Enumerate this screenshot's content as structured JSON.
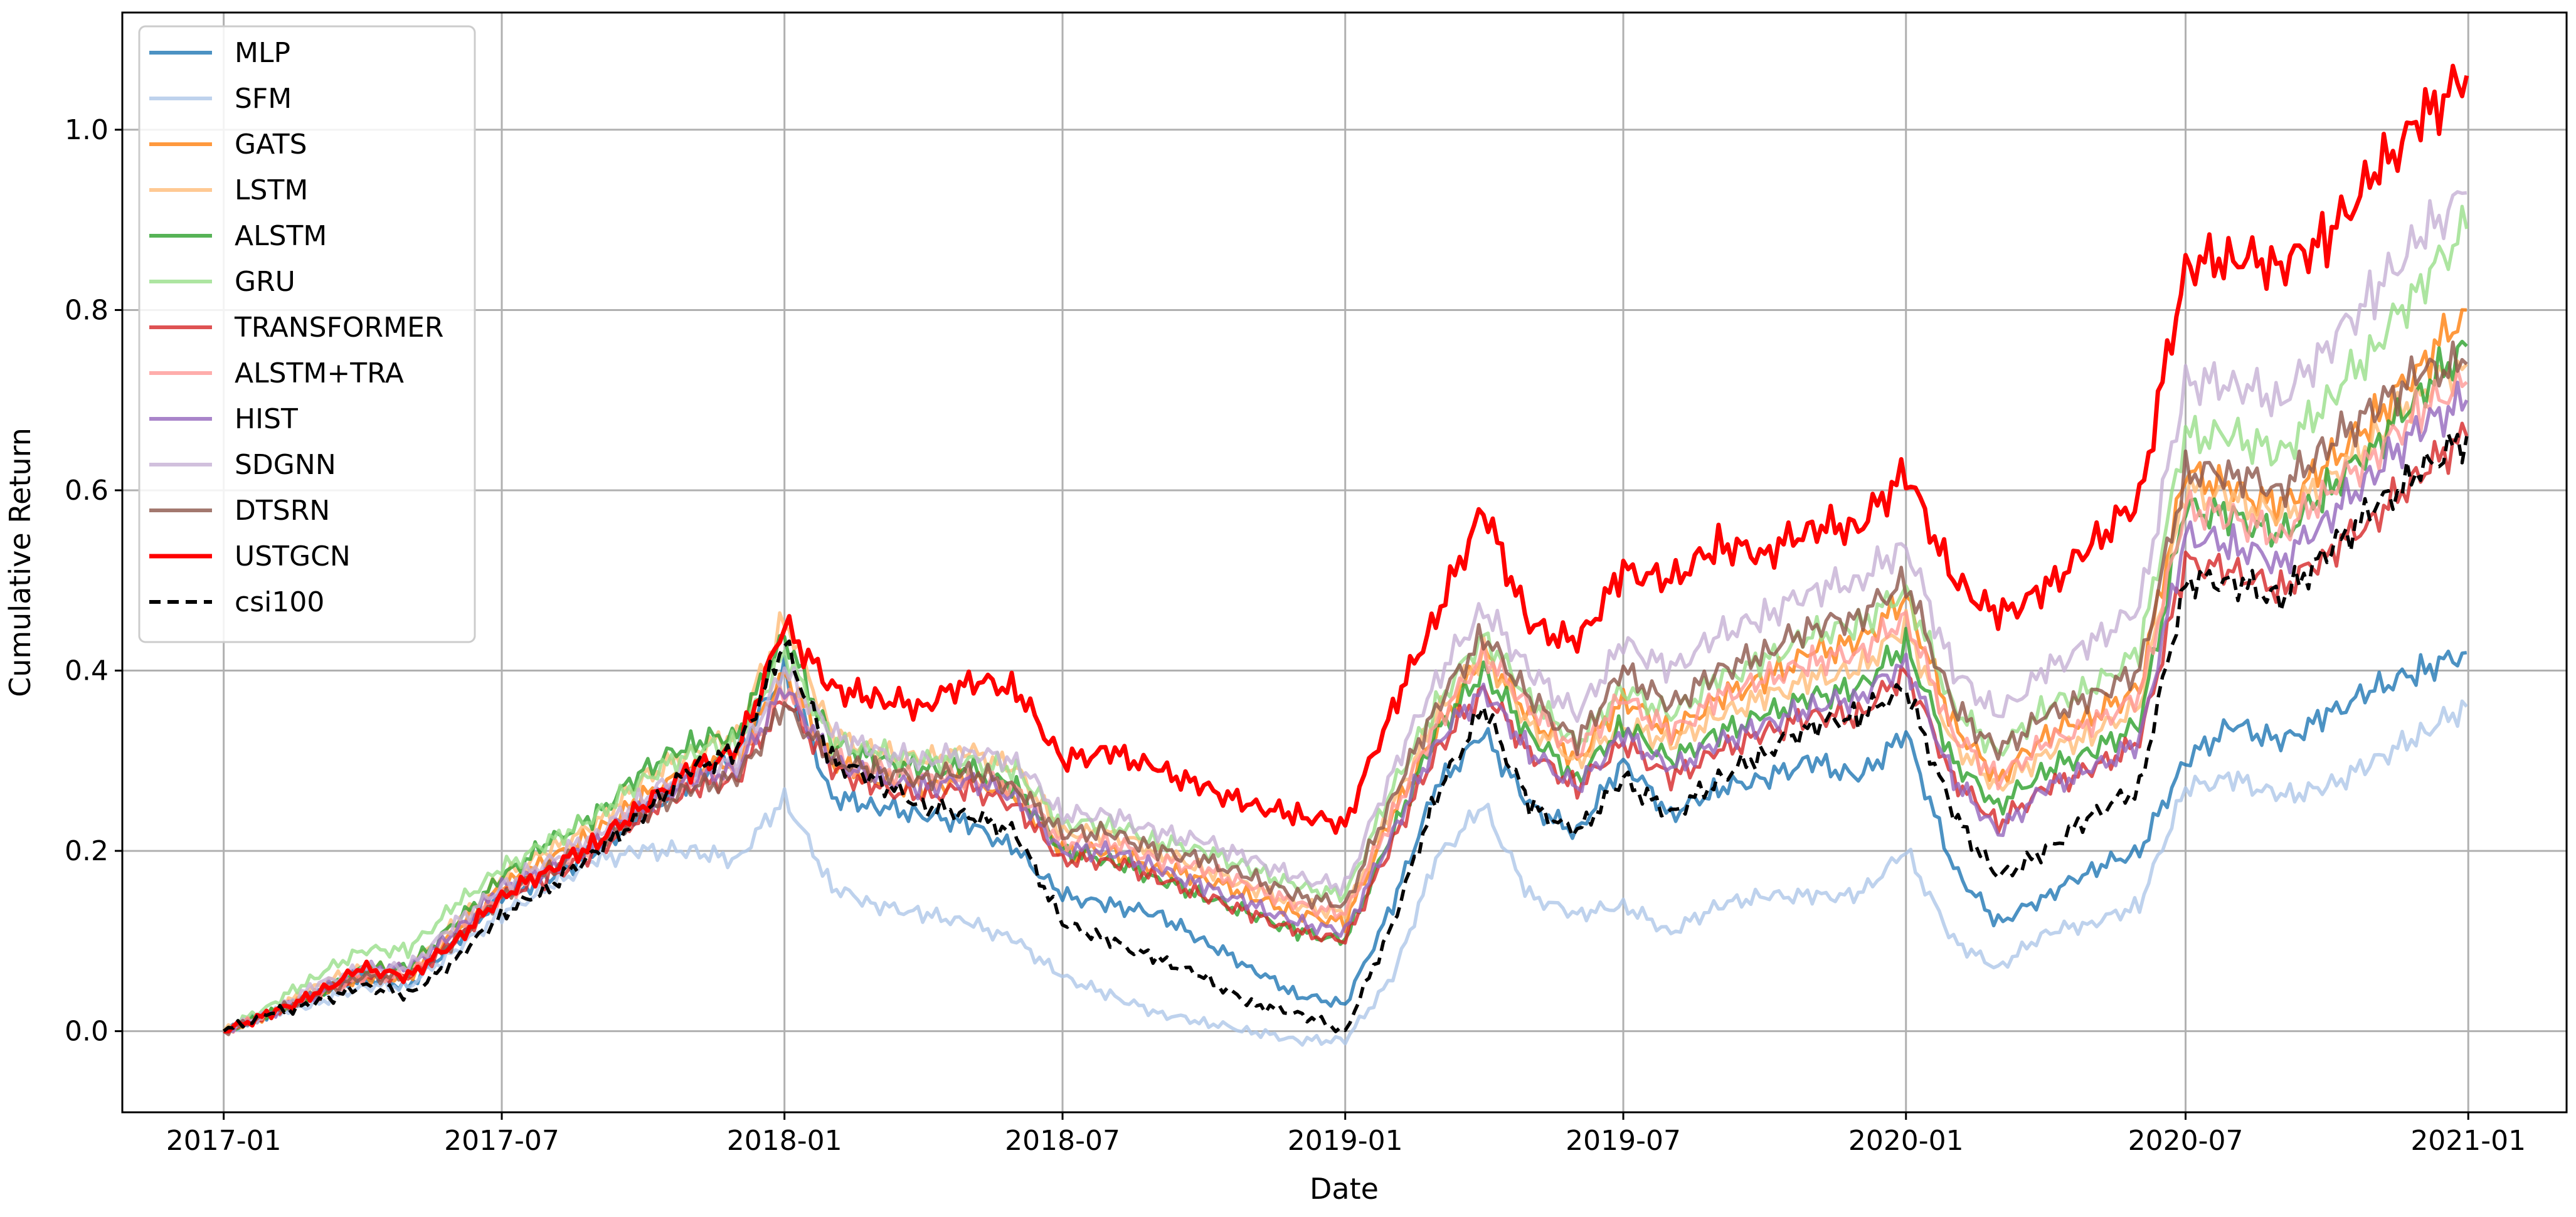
{
  "chart_data": {
    "type": "line",
    "title": "",
    "xlabel": "Date",
    "ylabel": "Cumulative Return",
    "xlim": [
      "2016-10-27",
      "2021-03-06"
    ],
    "ylim": [
      -0.09,
      1.13
    ],
    "x_tick_labels": [
      "2017-01",
      "2017-07",
      "2018-01",
      "2018-07",
      "2019-01",
      "2019-07",
      "2020-01",
      "2020-07",
      "2021-01"
    ],
    "y_tick_labels": [
      "0.0",
      "0.2",
      "0.4",
      "0.6",
      "0.8",
      "1.0"
    ],
    "y_ticks": [
      0.0,
      0.2,
      0.4,
      0.6,
      0.8,
      1.0
    ],
    "grid": true,
    "legend_position": "upper-left",
    "x": [
      "2017-01-01",
      "2017-02-01",
      "2017-03-01",
      "2017-04-01",
      "2017-05-01",
      "2017-06-01",
      "2017-07-01",
      "2017-08-01",
      "2017-09-01",
      "2017-10-01",
      "2017-11-01",
      "2017-12-01",
      "2018-01-01",
      "2018-02-01",
      "2018-03-01",
      "2018-04-01",
      "2018-05-01",
      "2018-06-01",
      "2018-07-01",
      "2018-08-01",
      "2018-09-01",
      "2018-10-01",
      "2018-11-01",
      "2018-12-01",
      "2019-01-01",
      "2019-02-01",
      "2019-03-01",
      "2019-04-01",
      "2019-05-01",
      "2019-06-01",
      "2019-07-01",
      "2019-08-01",
      "2019-09-01",
      "2019-10-01",
      "2019-11-01",
      "2019-12-01",
      "2020-01-01",
      "2020-02-01",
      "2020-03-01",
      "2020-04-01",
      "2020-05-01",
      "2020-06-01",
      "2020-07-01",
      "2020-08-01",
      "2020-09-01",
      "2020-10-01",
      "2020-11-01",
      "2020-12-01",
      "2020-12-31"
    ],
    "series": [
      {
        "name": "MLP",
        "color": "#1f77b4",
        "values": [
          0.0,
          0.02,
          0.04,
          0.06,
          0.05,
          0.1,
          0.15,
          0.17,
          0.2,
          0.24,
          0.28,
          0.31,
          0.4,
          0.26,
          0.25,
          0.24,
          0.23,
          0.2,
          0.15,
          0.14,
          0.13,
          0.1,
          0.07,
          0.04,
          0.03,
          0.14,
          0.27,
          0.33,
          0.25,
          0.22,
          0.3,
          0.24,
          0.27,
          0.28,
          0.3,
          0.28,
          0.33,
          0.18,
          0.12,
          0.15,
          0.18,
          0.2,
          0.3,
          0.34,
          0.32,
          0.35,
          0.38,
          0.4,
          0.42
        ]
      },
      {
        "name": "SFM",
        "color": "#aec7e8",
        "values": [
          0.0,
          0.02,
          0.03,
          0.05,
          0.05,
          0.09,
          0.13,
          0.16,
          0.19,
          0.2,
          0.2,
          0.19,
          0.26,
          0.16,
          0.14,
          0.13,
          0.12,
          0.1,
          0.06,
          0.04,
          0.02,
          0.01,
          0.0,
          -0.01,
          -0.01,
          0.06,
          0.19,
          0.25,
          0.15,
          0.13,
          0.14,
          0.11,
          0.14,
          0.15,
          0.15,
          0.15,
          0.2,
          0.1,
          0.07,
          0.11,
          0.12,
          0.14,
          0.27,
          0.28,
          0.26,
          0.27,
          0.3,
          0.33,
          0.36
        ]
      },
      {
        "name": "GATS",
        "color": "#ff7f0e",
        "values": [
          0.0,
          0.02,
          0.04,
          0.06,
          0.06,
          0.11,
          0.16,
          0.19,
          0.22,
          0.26,
          0.29,
          0.3,
          0.4,
          0.3,
          0.28,
          0.27,
          0.28,
          0.26,
          0.2,
          0.2,
          0.18,
          0.17,
          0.15,
          0.13,
          0.12,
          0.24,
          0.33,
          0.42,
          0.35,
          0.3,
          0.37,
          0.33,
          0.37,
          0.39,
          0.42,
          0.43,
          0.48,
          0.34,
          0.28,
          0.33,
          0.35,
          0.38,
          0.62,
          0.6,
          0.58,
          0.63,
          0.68,
          0.74,
          0.8
        ]
      },
      {
        "name": "LSTM",
        "color": "#ffbb78",
        "values": [
          0.0,
          0.02,
          0.05,
          0.07,
          0.07,
          0.12,
          0.17,
          0.2,
          0.23,
          0.28,
          0.31,
          0.33,
          0.46,
          0.33,
          0.31,
          0.3,
          0.31,
          0.29,
          0.22,
          0.22,
          0.2,
          0.18,
          0.16,
          0.14,
          0.13,
          0.25,
          0.35,
          0.42,
          0.34,
          0.3,
          0.34,
          0.32,
          0.35,
          0.37,
          0.39,
          0.4,
          0.45,
          0.32,
          0.27,
          0.31,
          0.33,
          0.36,
          0.6,
          0.59,
          0.57,
          0.61,
          0.66,
          0.71,
          0.74
        ]
      },
      {
        "name": "ALSTM",
        "color": "#2ca02c",
        "values": [
          0.0,
          0.02,
          0.04,
          0.07,
          0.07,
          0.12,
          0.17,
          0.21,
          0.24,
          0.29,
          0.32,
          0.33,
          0.44,
          0.32,
          0.3,
          0.29,
          0.29,
          0.27,
          0.2,
          0.19,
          0.17,
          0.15,
          0.13,
          0.11,
          0.1,
          0.22,
          0.33,
          0.4,
          0.33,
          0.28,
          0.34,
          0.3,
          0.33,
          0.35,
          0.37,
          0.38,
          0.43,
          0.3,
          0.25,
          0.29,
          0.31,
          0.34,
          0.58,
          0.57,
          0.55,
          0.6,
          0.65,
          0.71,
          0.76
        ]
      },
      {
        "name": "GRU",
        "color": "#98df8a",
        "values": [
          0.0,
          0.03,
          0.06,
          0.09,
          0.09,
          0.14,
          0.18,
          0.21,
          0.24,
          0.28,
          0.31,
          0.32,
          0.42,
          0.32,
          0.31,
          0.3,
          0.3,
          0.29,
          0.23,
          0.23,
          0.21,
          0.2,
          0.18,
          0.16,
          0.15,
          0.27,
          0.36,
          0.44,
          0.37,
          0.32,
          0.38,
          0.35,
          0.39,
          0.41,
          0.44,
          0.45,
          0.49,
          0.36,
          0.31,
          0.36,
          0.38,
          0.42,
          0.66,
          0.66,
          0.64,
          0.7,
          0.76,
          0.83,
          0.89
        ]
      },
      {
        "name": "TRANSFORMER",
        "color": "#d62728",
        "values": [
          0.0,
          0.02,
          0.04,
          0.06,
          0.06,
          0.1,
          0.15,
          0.17,
          0.2,
          0.24,
          0.27,
          0.28,
          0.37,
          0.29,
          0.27,
          0.26,
          0.27,
          0.25,
          0.19,
          0.19,
          0.17,
          0.15,
          0.13,
          0.11,
          0.1,
          0.21,
          0.31,
          0.38,
          0.31,
          0.27,
          0.32,
          0.28,
          0.31,
          0.33,
          0.35,
          0.35,
          0.4,
          0.28,
          0.23,
          0.27,
          0.29,
          0.32,
          0.52,
          0.51,
          0.49,
          0.53,
          0.57,
          0.62,
          0.66
        ]
      },
      {
        "name": "ALSTM+TRA",
        "color": "#ff9896",
        "values": [
          0.0,
          0.02,
          0.04,
          0.06,
          0.06,
          0.11,
          0.15,
          0.18,
          0.21,
          0.25,
          0.28,
          0.29,
          0.38,
          0.3,
          0.29,
          0.28,
          0.28,
          0.27,
          0.21,
          0.21,
          0.19,
          0.18,
          0.16,
          0.14,
          0.13,
          0.24,
          0.34,
          0.42,
          0.36,
          0.31,
          0.37,
          0.33,
          0.37,
          0.39,
          0.41,
          0.42,
          0.46,
          0.33,
          0.28,
          0.32,
          0.34,
          0.37,
          0.58,
          0.57,
          0.55,
          0.6,
          0.64,
          0.69,
          0.72
        ]
      },
      {
        "name": "HIST",
        "color": "#9467bd",
        "values": [
          0.0,
          0.02,
          0.04,
          0.07,
          0.07,
          0.11,
          0.16,
          0.18,
          0.21,
          0.25,
          0.28,
          0.29,
          0.38,
          0.3,
          0.28,
          0.27,
          0.28,
          0.26,
          0.2,
          0.2,
          0.18,
          0.16,
          0.14,
          0.12,
          0.11,
          0.22,
          0.32,
          0.38,
          0.31,
          0.27,
          0.33,
          0.29,
          0.32,
          0.34,
          0.36,
          0.37,
          0.41,
          0.28,
          0.22,
          0.27,
          0.29,
          0.32,
          0.55,
          0.54,
          0.52,
          0.57,
          0.62,
          0.67,
          0.7
        ]
      },
      {
        "name": "SDGNN",
        "color": "#c5b0d5",
        "values": [
          0.0,
          0.02,
          0.05,
          0.07,
          0.07,
          0.12,
          0.16,
          0.19,
          0.22,
          0.26,
          0.29,
          0.3,
          0.4,
          0.33,
          0.31,
          0.3,
          0.31,
          0.3,
          0.24,
          0.24,
          0.22,
          0.21,
          0.19,
          0.17,
          0.16,
          0.29,
          0.39,
          0.47,
          0.4,
          0.35,
          0.43,
          0.4,
          0.44,
          0.46,
          0.49,
          0.5,
          0.54,
          0.4,
          0.35,
          0.4,
          0.43,
          0.47,
          0.72,
          0.72,
          0.7,
          0.76,
          0.82,
          0.88,
          0.93
        ]
      },
      {
        "name": "DTSRN",
        "color": "#8c564b",
        "values": [
          0.0,
          0.02,
          0.04,
          0.06,
          0.06,
          0.1,
          0.15,
          0.18,
          0.21,
          0.24,
          0.27,
          0.28,
          0.36,
          0.3,
          0.29,
          0.28,
          0.29,
          0.27,
          0.22,
          0.22,
          0.2,
          0.19,
          0.17,
          0.15,
          0.14,
          0.26,
          0.36,
          0.44,
          0.37,
          0.32,
          0.4,
          0.36,
          0.4,
          0.42,
          0.45,
          0.46,
          0.5,
          0.36,
          0.31,
          0.35,
          0.37,
          0.4,
          0.62,
          0.62,
          0.6,
          0.65,
          0.69,
          0.73,
          0.74
        ]
      },
      {
        "name": "USTGCN",
        "color": "#ff0000",
        "values": [
          0.0,
          0.02,
          0.04,
          0.07,
          0.06,
          0.1,
          0.15,
          0.18,
          0.21,
          0.25,
          0.29,
          0.31,
          0.45,
          0.38,
          0.37,
          0.36,
          0.39,
          0.38,
          0.3,
          0.31,
          0.29,
          0.27,
          0.25,
          0.24,
          0.23,
          0.36,
          0.46,
          0.58,
          0.45,
          0.43,
          0.51,
          0.5,
          0.54,
          0.53,
          0.56,
          0.56,
          0.62,
          0.5,
          0.46,
          0.49,
          0.54,
          0.59,
          0.85,
          0.86,
          0.85,
          0.88,
          0.95,
          1.01,
          1.06
        ]
      },
      {
        "name": "csi100",
        "color": "#000000",
        "dashed": true,
        "values": [
          0.0,
          0.02,
          0.03,
          0.05,
          0.04,
          0.08,
          0.13,
          0.16,
          0.2,
          0.24,
          0.29,
          0.31,
          0.43,
          0.3,
          0.28,
          0.25,
          0.24,
          0.22,
          0.12,
          0.1,
          0.08,
          0.06,
          0.03,
          0.02,
          0.0,
          0.12,
          0.26,
          0.36,
          0.25,
          0.22,
          0.28,
          0.24,
          0.28,
          0.31,
          0.34,
          0.35,
          0.38,
          0.24,
          0.17,
          0.2,
          0.24,
          0.27,
          0.5,
          0.5,
          0.48,
          0.53,
          0.58,
          0.62,
          0.66
        ]
      }
    ]
  }
}
